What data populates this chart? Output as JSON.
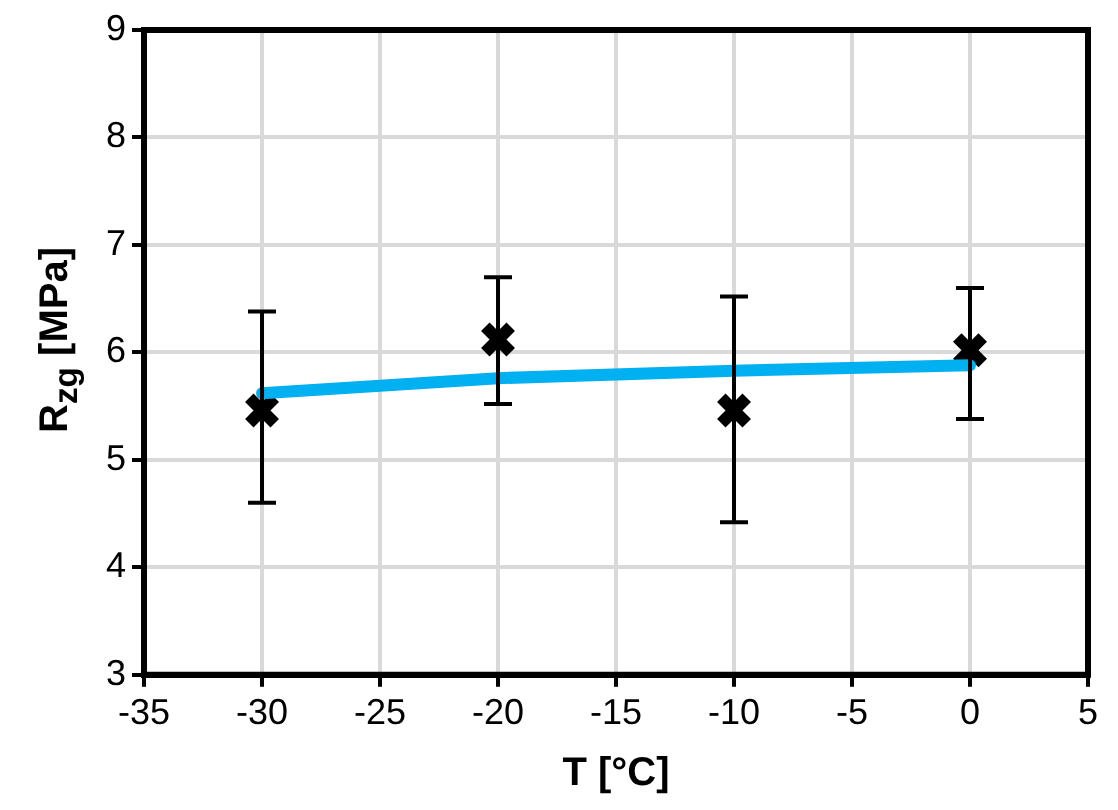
{
  "chart_data": {
    "type": "scatter",
    "xlabel": "T [°C]",
    "ylabel": "R$_{zg}$ [MPa]",
    "xlim": [
      -35,
      5
    ],
    "xticks": [
      -35,
      -30,
      -25,
      -20,
      -15,
      -10,
      -5,
      0,
      5
    ],
    "ylim": [
      3,
      9
    ],
    "yticks": [
      3,
      4,
      5,
      6,
      7,
      8,
      9
    ],
    "grid": true,
    "legend": false,
    "series": [
      {
        "type": "scatter",
        "color": "#000000",
        "marker": "cross",
        "x": [
          -30,
          -20,
          -10,
          0
        ],
        "values": [
          5.46,
          6.12,
          5.46,
          6.02
        ],
        "errors": [
          [
            4.6,
            6.38
          ],
          [
            5.52,
            6.7
          ],
          [
            4.42,
            6.52
          ],
          [
            5.38,
            6.6
          ]
        ]
      },
      {
        "type": "line",
        "color": "#00b0f0",
        "marker": "none",
        "x": [
          -30,
          -20,
          -10,
          0
        ],
        "values": [
          5.62,
          5.76,
          5.83,
          5.88
        ]
      }
    ]
  }
}
